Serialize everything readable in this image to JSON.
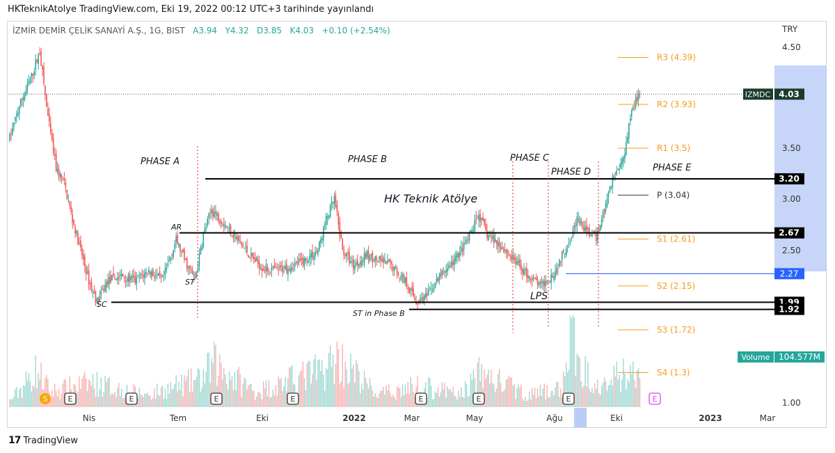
{
  "header": {
    "caption": "HKTeknikAtolye TradingView.com, Eki 19, 2022 00:12 UTC+3 tarihinde yayınlandı"
  },
  "symbol": {
    "name": "İZMİR DEMİR ÇELİK SANAYİ A.Ş., 1G, BIST",
    "open": "A3.94",
    "high": "Y4.32",
    "low": "D3.85",
    "close": "K4.03",
    "change": "+0.10 (+2.54%)"
  },
  "footer": {
    "brand": "TradingView"
  },
  "colors": {
    "up": "#26a69a",
    "down": "#ef5350",
    "pivot": "#f59c1a",
    "highlight": "#b3c7f5",
    "blue_line": "#2962ff"
  },
  "chart_data": {
    "type": "candlestick",
    "currency": "TRY",
    "watermark": "HK Teknik Atölye",
    "y_ticks": [
      4.5,
      3.5,
      3.0,
      2.5,
      1.0
    ],
    "y_tick_labels": [
      "4.50",
      "3.50",
      "3.00",
      "2.50",
      "1.00"
    ],
    "x_ticks": [
      "Nis",
      "Tem",
      "Eki",
      "2022",
      "Mar",
      "May",
      "Ağu",
      "Eki",
      "2023",
      "Mar"
    ],
    "last_price_badge": {
      "ticker": "IZMDC",
      "value": "4.03",
      "price": 4.03
    },
    "volume_badge": {
      "label": "Volume",
      "value": "104.577M"
    },
    "horizontal_levels": [
      {
        "label": "3.20",
        "price": 3.2
      },
      {
        "label": "2.67",
        "price": 2.67
      },
      {
        "label": "1.99",
        "price": 1.99
      },
      {
        "label": "1.92",
        "price": 1.92
      }
    ],
    "blue_level": {
      "label": "2.27",
      "price": 2.27
    },
    "pivots": [
      {
        "label": "R3 (4.39)",
        "price": 4.39
      },
      {
        "label": "R2 (3.93)",
        "price": 3.93
      },
      {
        "label": "R1 (3.5)",
        "price": 3.5
      },
      {
        "label": "P (3.04)",
        "price": 3.04
      },
      {
        "label": "S1 (2.61)",
        "price": 2.61
      },
      {
        "label": "S2 (2.15)",
        "price": 2.15
      },
      {
        "label": "S3 (1.72)",
        "price": 1.72
      },
      {
        "label": "S4 (1.3)",
        "price": 1.3
      }
    ],
    "phases": [
      "PHASE A",
      "PHASE B",
      "PHASE C",
      "PHASE D",
      "PHASE E"
    ],
    "wyckoff_labels": [
      "AR",
      "ST",
      "SC",
      "ST in Phase B",
      "LPS"
    ],
    "event_markers": [
      "S",
      "E",
      "E",
      "E",
      "E",
      "E",
      "E",
      "E",
      "E"
    ],
    "series_anchors": [
      [
        0,
        3.6
      ],
      [
        8,
        3.95
      ],
      [
        16,
        4.2
      ],
      [
        22,
        4.45
      ],
      [
        28,
        3.8
      ],
      [
        34,
        3.3
      ],
      [
        40,
        3.15
      ],
      [
        46,
        2.8
      ],
      [
        52,
        2.5
      ],
      [
        58,
        2.2
      ],
      [
        64,
        1.99
      ],
      [
        72,
        2.2
      ],
      [
        82,
        2.25
      ],
      [
        92,
        2.2
      ],
      [
        102,
        2.3
      ],
      [
        112,
        2.2
      ],
      [
        122,
        2.6
      ],
      [
        130,
        2.35
      ],
      [
        136,
        2.22
      ],
      [
        142,
        2.65
      ],
      [
        148,
        2.9
      ],
      [
        156,
        2.78
      ],
      [
        166,
        2.62
      ],
      [
        176,
        2.45
      ],
      [
        186,
        2.32
      ],
      [
        196,
        2.3
      ],
      [
        206,
        2.35
      ],
      [
        216,
        2.4
      ],
      [
        226,
        2.5
      ],
      [
        232,
        2.8
      ],
      [
        238,
        3.0
      ],
      [
        244,
        2.5
      ],
      [
        252,
        2.35
      ],
      [
        262,
        2.45
      ],
      [
        270,
        2.4
      ],
      [
        280,
        2.35
      ],
      [
        290,
        2.2
      ],
      [
        298,
        2.0
      ],
      [
        306,
        2.05
      ],
      [
        316,
        2.25
      ],
      [
        326,
        2.4
      ],
      [
        336,
        2.6
      ],
      [
        344,
        2.85
      ],
      [
        350,
        2.65
      ],
      [
        360,
        2.55
      ],
      [
        370,
        2.4
      ],
      [
        380,
        2.25
      ],
      [
        390,
        2.15
      ],
      [
        400,
        2.3
      ],
      [
        410,
        2.6
      ],
      [
        416,
        2.8
      ],
      [
        422,
        2.7
      ],
      [
        430,
        2.62
      ],
      [
        436,
        2.9
      ],
      [
        442,
        3.2
      ],
      [
        450,
        3.4
      ],
      [
        456,
        3.9
      ],
      [
        462,
        4.03
      ]
    ],
    "volume_anchors": [
      [
        0,
        10
      ],
      [
        20,
        60
      ],
      [
        30,
        25
      ],
      [
        60,
        40
      ],
      [
        100,
        20
      ],
      [
        140,
        45
      ],
      [
        150,
        70
      ],
      [
        180,
        25
      ],
      [
        230,
        60
      ],
      [
        240,
        80
      ],
      [
        270,
        20
      ],
      [
        300,
        35
      ],
      [
        330,
        20
      ],
      [
        345,
        55
      ],
      [
        380,
        20
      ],
      [
        405,
        30
      ],
      [
        412,
        120
      ],
      [
        418,
        60
      ],
      [
        440,
        40
      ],
      [
        450,
        55
      ],
      [
        462,
        50
      ]
    ]
  }
}
